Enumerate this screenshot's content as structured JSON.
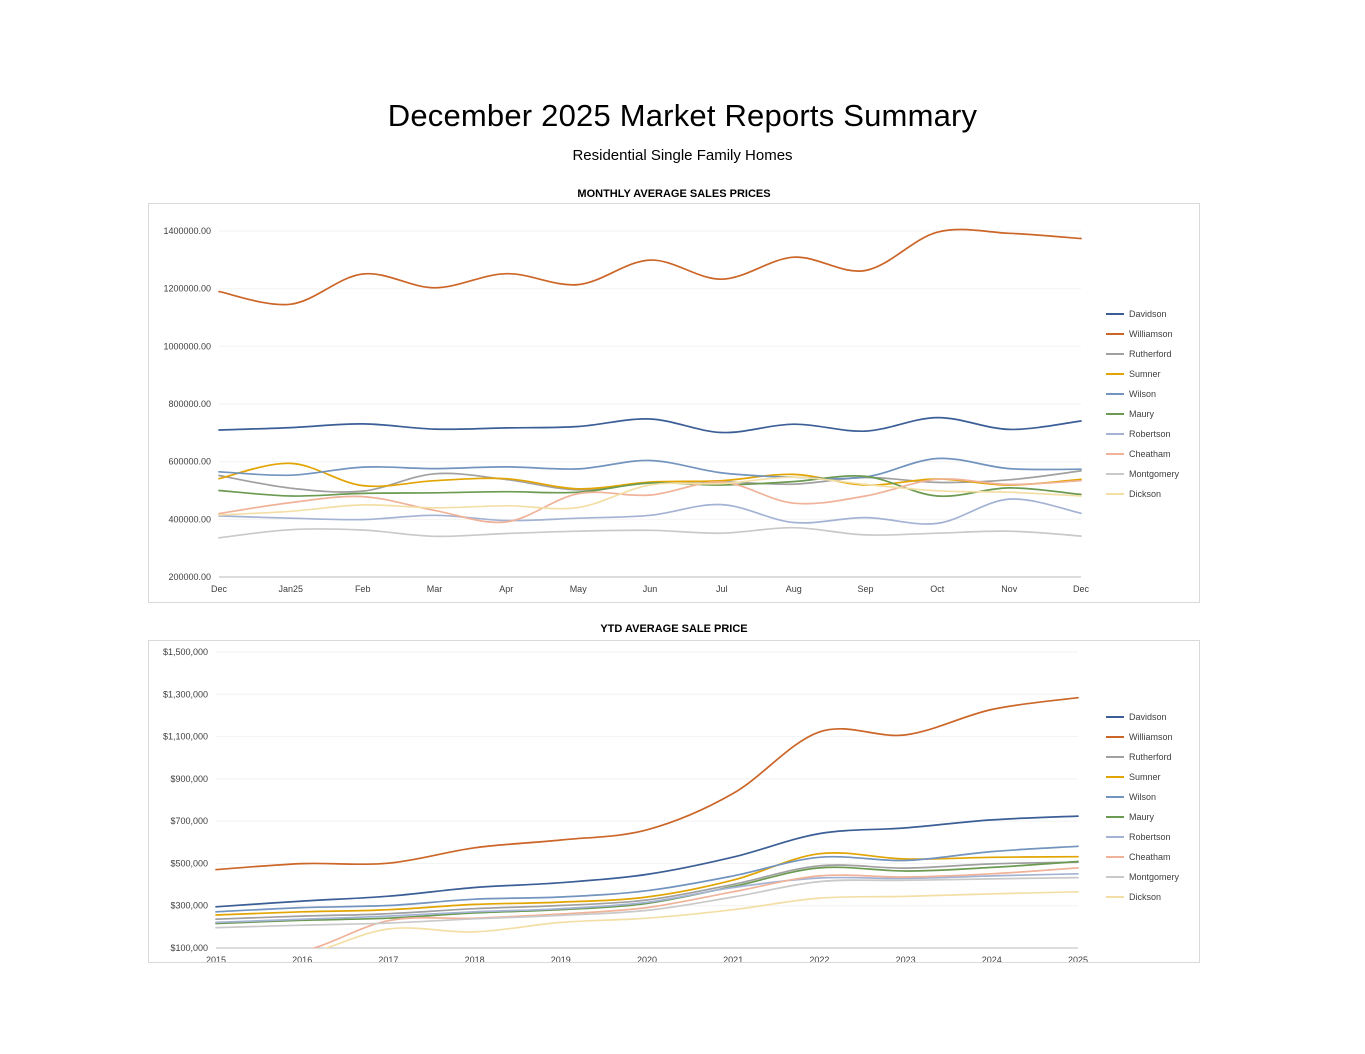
{
  "report": {
    "title": "December 2025 Market Reports Summary",
    "subtitle": "Residential Single Family Homes"
  },
  "chart_data": [
    {
      "type": "line",
      "title": "MONTHLY AVERAGE SALES PRICES",
      "legend_position": "right",
      "grid": true,
      "categories": [
        "Dec",
        "Jan25",
        "Feb",
        "Mar",
        "Apr",
        "May",
        "Jun",
        "Jul",
        "Aug",
        "Sep",
        "Oct",
        "Nov",
        "Dec"
      ],
      "ylim": [
        200000,
        1400000
      ],
      "y_ticks": [
        {
          "label": "1400000.00",
          "value": 1400000
        },
        {
          "label": "1200000.00",
          "value": 1200000
        },
        {
          "label": "1000000.00",
          "value": 1000000
        },
        {
          "label": "800000.00",
          "value": 800000
        },
        {
          "label": "600000.00",
          "value": 600000
        },
        {
          "label": "400000.00",
          "value": 400000
        },
        {
          "label": "200000.00",
          "value": 200000
        }
      ],
      "series": [
        {
          "name": "Davidson",
          "color": "#3B5E96",
          "values": [
            710000,
            718000,
            731000,
            713000,
            717000,
            722000,
            748000,
            701000,
            730000,
            706000,
            753000,
            712000,
            741000
          ]
        },
        {
          "name": "Williamson",
          "color": "#CC6628",
          "values": [
            1190000,
            1146000,
            1251000,
            1203000,
            1252000,
            1214000,
            1299000,
            1233000,
            1309000,
            1263000,
            1396000,
            1392000,
            1374000
          ]
        },
        {
          "name": "Rutherford",
          "color": "#A0A0A0",
          "values": [
            552000,
            508000,
            498000,
            558000,
            538000,
            502000,
            527000,
            530000,
            522000,
            545000,
            528000,
            537000,
            568000
          ]
        },
        {
          "name": "Sumner",
          "color": "#E2A400",
          "values": [
            541000,
            594000,
            517000,
            534000,
            541000,
            506000,
            529000,
            534000,
            556000,
            519000,
            540000,
            519000,
            539000
          ]
        },
        {
          "name": "Wilson",
          "color": "#7294BE",
          "values": [
            565000,
            553000,
            581000,
            576000,
            582000,
            575000,
            604000,
            561000,
            546000,
            547000,
            611000,
            576000,
            574000
          ]
        },
        {
          "name": "Maury",
          "color": "#6B9A51",
          "values": [
            500000,
            481000,
            490000,
            492000,
            496000,
            494000,
            526000,
            519000,
            531000,
            549000,
            481000,
            509000,
            486000
          ]
        },
        {
          "name": "Robertson",
          "color": "#A4B3D4",
          "values": [
            412000,
            404000,
            399000,
            414000,
            396000,
            404000,
            414000,
            451000,
            389000,
            406000,
            386000,
            470000,
            421000
          ]
        },
        {
          "name": "Cheatham",
          "color": "#F0B298",
          "values": [
            420000,
            458000,
            479000,
            431000,
            391000,
            489000,
            484000,
            529000,
            456000,
            481000,
            539000,
            521000,
            534000
          ]
        },
        {
          "name": "Montgomery",
          "color": "#C9C9C9",
          "values": [
            336000,
            364000,
            363000,
            341000,
            351000,
            359000,
            362000,
            352000,
            371000,
            346000,
            352000,
            359000,
            342000
          ]
        },
        {
          "name": "Dickson",
          "color": "#F3DFA6",
          "values": [
            415000,
            428000,
            450000,
            440000,
            447000,
            441000,
            519000,
            524000,
            546000,
            521000,
            499000,
            494000,
            481000
          ]
        }
      ]
    },
    {
      "type": "line",
      "title": "YTD AVERAGE SALE PRICE",
      "legend_position": "right",
      "grid": true,
      "categories": [
        "2015",
        "2016",
        "2017",
        "2018",
        "2019",
        "2020",
        "2021",
        "2022",
        "2023",
        "2024",
        "2025"
      ],
      "ylim": [
        100000,
        1500000
      ],
      "y_ticks": [
        {
          "label": "$1,500,000",
          "value": 1500000
        },
        {
          "label": "$1,300,000",
          "value": 1300000
        },
        {
          "label": "$1,100,000",
          "value": 1100000
        },
        {
          "label": "$900,000",
          "value": 900000
        },
        {
          "label": "$700,000",
          "value": 700000
        },
        {
          "label": "$500,000",
          "value": 500000
        },
        {
          "label": "$300,000",
          "value": 300000
        },
        {
          "label": "$100,000",
          "value": 100000
        }
      ],
      "series": [
        {
          "name": "Davidson",
          "color": "#3B5E96",
          "values": [
            295000,
            322000,
            345000,
            386000,
            409000,
            448000,
            530000,
            641000,
            668000,
            706000,
            724000
          ]
        },
        {
          "name": "Williamson",
          "color": "#CC6628",
          "values": [
            471000,
            499000,
            501000,
            574000,
            611000,
            659000,
            831000,
            1122000,
            1108000,
            1228000,
            1284000
          ]
        },
        {
          "name": "Rutherford",
          "color": "#A0A0A0",
          "values": [
            236000,
            251000,
            262000,
            286000,
            301000,
            327000,
            401000,
            489000,
            478000,
            498000,
            506000
          ]
        },
        {
          "name": "Sumner",
          "color": "#E2A400",
          "values": [
            256000,
            271000,
            281000,
            306000,
            317000,
            341000,
            421000,
            546000,
            521000,
            529000,
            532000
          ]
        },
        {
          "name": "Wilson",
          "color": "#7294BE",
          "values": [
            271000,
            291000,
            301000,
            331000,
            341000,
            371000,
            441000,
            529000,
            514000,
            556000,
            581000
          ]
        },
        {
          "name": "Maury",
          "color": "#6B9A51",
          "values": [
            216000,
            231000,
            241000,
            266000,
            281000,
            311000,
            391000,
            479000,
            464000,
            481000,
            509000
          ]
        },
        {
          "name": "Robertson",
          "color": "#A4B3D4",
          "values": [
            221000,
            236000,
            251000,
            271000,
            286000,
            316000,
            386000,
            431000,
            429000,
            441000,
            451000
          ]
        },
        {
          "name": "Cheatham",
          "color": "#F0B298",
          "values": [
            60000,
            85000,
            229000,
            241000,
            261000,
            291000,
            366000,
            441000,
            436000,
            451000,
            479000
          ]
        },
        {
          "name": "Montgomery",
          "color": "#C9C9C9",
          "values": [
            196000,
            208000,
            218000,
            238000,
            254000,
            278000,
            341000,
            414000,
            420000,
            427000,
            433000
          ]
        },
        {
          "name": "Dickson",
          "color": "#F3DFA6",
          "values": [
            55000,
            70000,
            190000,
            176000,
            221000,
            241000,
            281000,
            336000,
            344000,
            356000,
            366000
          ]
        }
      ]
    }
  ]
}
